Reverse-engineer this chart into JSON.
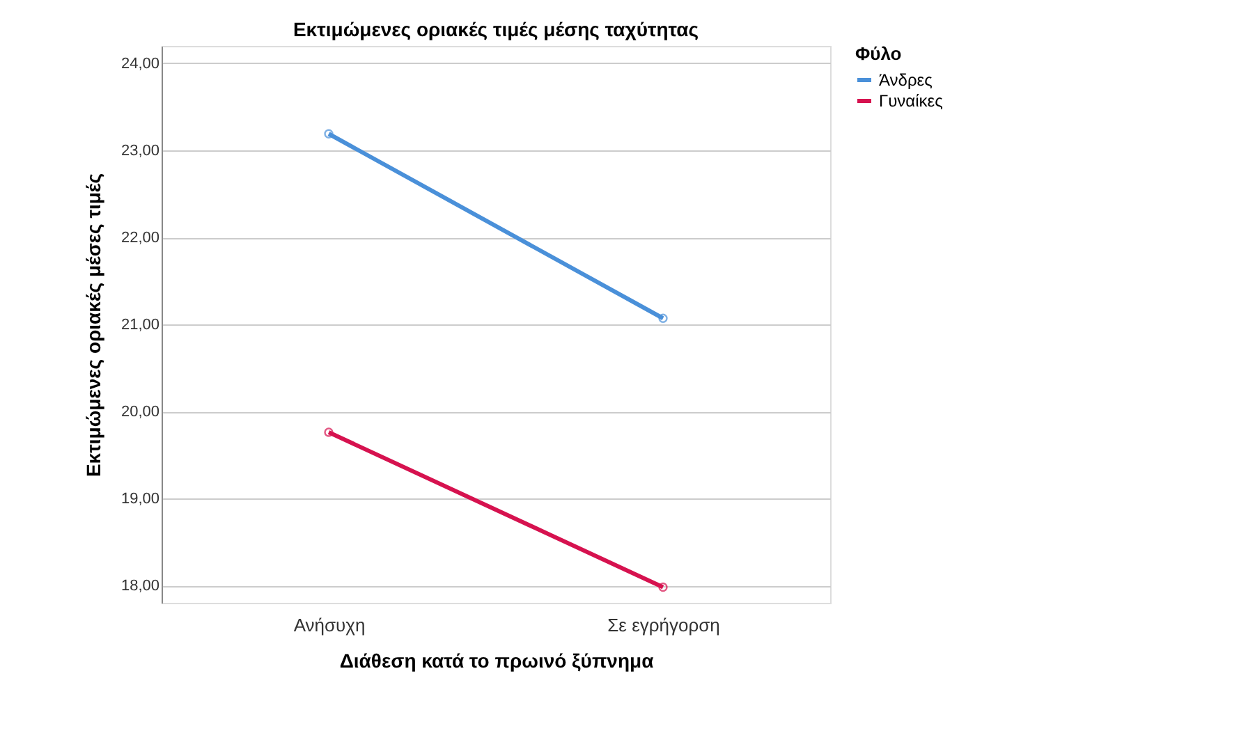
{
  "chart_data": {
    "type": "line",
    "title": "Εκτιμώμενες οριακές τιμές μέσης ταχύτητας",
    "xlabel": "Διάθεση κατά το πρωινό ξύπνημα",
    "ylabel": "Εκτιμώμενες οριακές μέσες τιμές",
    "legend_title": "Φύλο",
    "categories": [
      "Ανήσυχη",
      "Σε εγρήγορση"
    ],
    "series": [
      {
        "name": "Άνδρες",
        "color": "#4a90d9",
        "values": [
          23.19,
          21.07
        ]
      },
      {
        "name": "Γυναίκες",
        "color": "#d6124f",
        "values": [
          19.76,
          17.98
        ]
      }
    ],
    "ylim": [
      17.8,
      24.2
    ],
    "yticks": [
      {
        "value": 18,
        "label": "18,00"
      },
      {
        "value": 19,
        "label": "19,00"
      },
      {
        "value": 20,
        "label": "20,00"
      },
      {
        "value": 21,
        "label": "21,00"
      },
      {
        "value": 22,
        "label": "22,00"
      },
      {
        "value": 23,
        "label": "23,00"
      },
      {
        "value": 24,
        "label": "24,00"
      }
    ],
    "grid": "y",
    "legend": "top right",
    "marker": "circle",
    "line_style": "solid"
  }
}
